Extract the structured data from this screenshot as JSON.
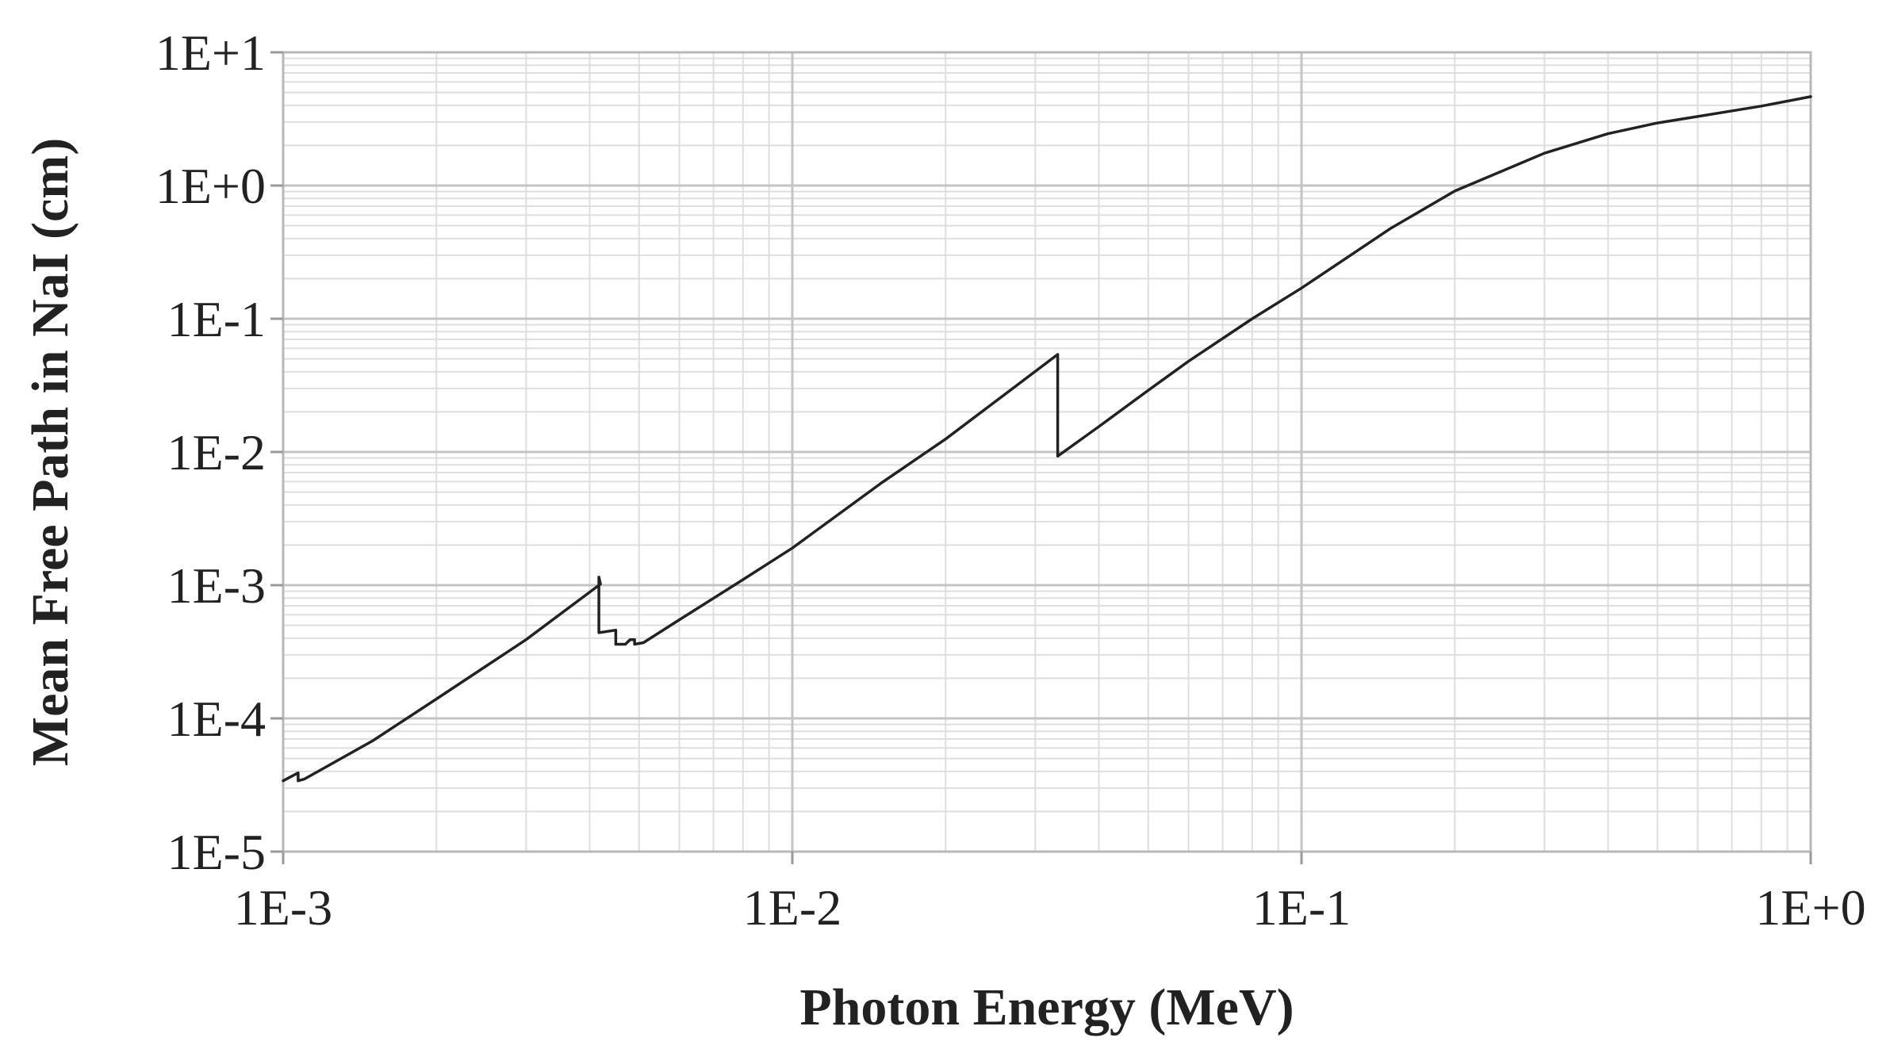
{
  "chart_data": {
    "type": "line",
    "xlabel": "Photon Energy (MeV)",
    "ylabel": "Mean Free Path in NaI (cm)",
    "x_scale": "log",
    "y_scale": "log",
    "xlim": [
      0.001,
      1
    ],
    "ylim": [
      1e-05,
      10
    ],
    "grid": true,
    "x_ticks": [
      {
        "value": 0.001,
        "label": "1E-3"
      },
      {
        "value": 0.01,
        "label": "1E-2"
      },
      {
        "value": 0.1,
        "label": "1E-1"
      },
      {
        "value": 1,
        "label": "1E+0"
      }
    ],
    "y_ticks": [
      {
        "value": 10,
        "label": "1E+1"
      },
      {
        "value": 1,
        "label": "1E+0"
      },
      {
        "value": 0.1,
        "label": "1E-1"
      },
      {
        "value": 0.01,
        "label": "1E-2"
      },
      {
        "value": 0.001,
        "label": "1E-3"
      },
      {
        "value": 0.0001,
        "label": "1E-4"
      },
      {
        "value": 1e-05,
        "label": "1E-5"
      }
    ],
    "line_color": "#222222",
    "series": [
      {
        "x": [
          0.001,
          0.00107,
          0.00107,
          0.0011,
          0.0015,
          0.002,
          0.003,
          0.0042,
          0.00417,
          0.00417,
          0.0045,
          0.0045,
          0.0047,
          0.0048,
          0.0049,
          0.0049,
          0.0051,
          0.006,
          0.008,
          0.01,
          0.015,
          0.02,
          0.0332,
          0.0332,
          0.04,
          0.05,
          0.06,
          0.08,
          0.1,
          0.15,
          0.2,
          0.3,
          0.4,
          0.5,
          0.6,
          0.8,
          1.0
        ],
        "y": [
          3.4e-05,
          3.9e-05,
          3.4e-05,
          3.5e-05,
          6.8e-05,
          0.00014,
          0.00039,
          0.00102,
          0.00115,
          0.00044,
          0.00046,
          0.00036,
          0.00036,
          0.00039,
          0.00039,
          0.00036,
          0.00037,
          0.00055,
          0.0011,
          0.0019,
          0.0059,
          0.0125,
          0.054,
          0.0093,
          0.0155,
          0.029,
          0.048,
          0.1,
          0.17,
          0.48,
          0.91,
          1.75,
          2.45,
          2.95,
          3.3,
          3.95,
          4.65
        ]
      }
    ]
  }
}
